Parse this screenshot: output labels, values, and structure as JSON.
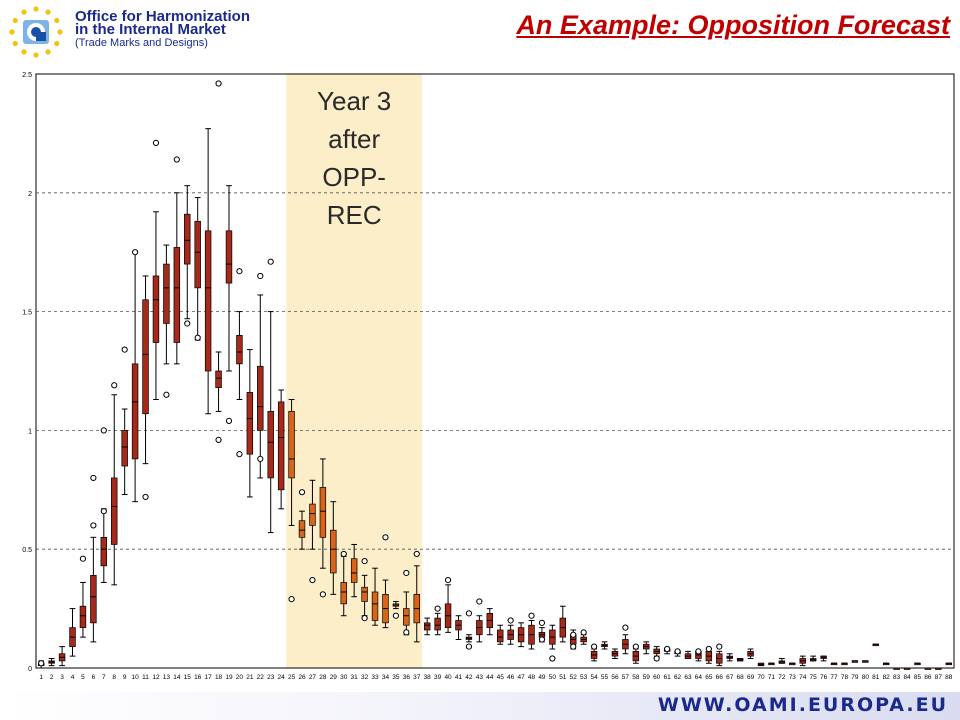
{
  "header": {
    "org_line1": "Office for Harmonization",
    "org_line2": "in the Internal Market",
    "org_line3": "(Trade Marks and Designs)",
    "title": "An Example: Opposition Forecast"
  },
  "highlight": {
    "label_lines": [
      "Year 3",
      "after",
      "OPP-",
      "REC"
    ],
    "from_x": 25,
    "to_x": 37,
    "color": "#fbeec8"
  },
  "footer": {
    "url": "WWW.OAMI.EUROPA.EU"
  },
  "colors": {
    "title": "#c00000",
    "org": "#1a2a8c",
    "box": "#a52a1a",
    "box_highlight": "#d8641a"
  },
  "chart_data": {
    "type": "box",
    "title": "",
    "xlabel": "",
    "ylabel": "",
    "ylim": [
      0,
      2.5
    ],
    "yticks": [
      "0",
      "0.5",
      "1",
      "1.5",
      "2",
      "2.5"
    ],
    "grid": "horizontal dashed",
    "x": [
      1,
      2,
      3,
      4,
      5,
      6,
      7,
      8,
      9,
      10,
      11,
      12,
      13,
      14,
      15,
      16,
      17,
      18,
      19,
      20,
      21,
      22,
      23,
      24,
      25,
      26,
      27,
      28,
      29,
      30,
      31,
      32,
      33,
      34,
      35,
      36,
      37,
      38,
      39,
      40,
      41,
      42,
      43,
      44,
      45,
      46,
      47,
      48,
      49,
      50,
      51,
      52,
      53,
      54,
      55,
      56,
      57,
      58,
      59,
      60,
      61,
      62,
      63,
      64,
      65,
      66,
      67,
      68,
      69,
      70,
      71,
      72,
      73,
      74,
      75,
      76,
      77,
      78,
      79,
      80,
      81,
      82,
      83,
      84,
      85,
      86,
      87,
      88
    ],
    "boxes": [
      {
        "q1": 0.01,
        "q3": 0.02,
        "min": 0.0,
        "max": 0.03,
        "med": 0.015,
        "out": [
          0.02
        ]
      },
      {
        "q1": 0.02,
        "q3": 0.03,
        "min": 0.01,
        "max": 0.04,
        "med": 0.025,
        "out": []
      },
      {
        "q1": 0.03,
        "q3": 0.06,
        "min": 0.01,
        "max": 0.09,
        "med": 0.045,
        "out": []
      },
      {
        "q1": 0.09,
        "q3": 0.17,
        "min": 0.05,
        "max": 0.25,
        "med": 0.13,
        "out": []
      },
      {
        "q1": 0.17,
        "q3": 0.26,
        "min": 0.13,
        "max": 0.36,
        "med": 0.22,
        "out": [
          0.46
        ]
      },
      {
        "q1": 0.19,
        "q3": 0.39,
        "min": 0.11,
        "max": 0.55,
        "med": 0.3,
        "out": [
          0.8,
          0.6
        ]
      },
      {
        "q1": 0.43,
        "q3": 0.55,
        "min": 0.36,
        "max": 0.67,
        "med": 0.5,
        "out": [
          1.0,
          0.66
        ]
      },
      {
        "q1": 0.52,
        "q3": 0.8,
        "min": 0.35,
        "max": 1.15,
        "med": 0.68,
        "out": [
          1.19
        ]
      },
      {
        "q1": 0.85,
        "q3": 1.0,
        "min": 0.73,
        "max": 1.09,
        "med": 0.93,
        "out": [
          1.34
        ]
      },
      {
        "q1": 0.88,
        "q3": 1.28,
        "min": 0.7,
        "max": 1.75,
        "med": 1.12,
        "out": [
          1.75
        ]
      },
      {
        "q1": 1.07,
        "q3": 1.55,
        "min": 0.86,
        "max": 1.65,
        "med": 1.32,
        "out": [
          0.72
        ]
      },
      {
        "q1": 1.37,
        "q3": 1.65,
        "min": 1.13,
        "max": 1.92,
        "med": 1.55,
        "out": [
          2.21
        ]
      },
      {
        "q1": 1.45,
        "q3": 1.7,
        "min": 1.28,
        "max": 1.78,
        "med": 1.6,
        "out": [
          1.15
        ]
      },
      {
        "q1": 1.37,
        "q3": 1.77,
        "min": 1.28,
        "max": 2.0,
        "med": 1.6,
        "out": [
          2.14
        ]
      },
      {
        "q1": 1.7,
        "q3": 1.91,
        "min": 1.47,
        "max": 2.03,
        "med": 1.8,
        "out": [
          1.45
        ]
      },
      {
        "q1": 1.6,
        "q3": 1.88,
        "min": 1.38,
        "max": 1.98,
        "med": 1.75,
        "out": [
          1.39
        ]
      },
      {
        "q1": 1.25,
        "q3": 1.84,
        "min": 1.07,
        "max": 2.27,
        "med": 1.6,
        "out": []
      },
      {
        "q1": 1.18,
        "q3": 1.25,
        "min": 1.08,
        "max": 1.33,
        "med": 1.22,
        "out": [
          2.46,
          0.96
        ]
      },
      {
        "q1": 1.62,
        "q3": 1.84,
        "min": 1.25,
        "max": 2.03,
        "med": 1.7,
        "out": [
          1.04
        ]
      },
      {
        "q1": 1.28,
        "q3": 1.4,
        "min": 1.13,
        "max": 1.5,
        "med": 1.33,
        "out": [
          1.67,
          0.9
        ]
      },
      {
        "q1": 0.9,
        "q3": 1.16,
        "min": 0.72,
        "max": 1.34,
        "med": 1.05,
        "out": []
      },
      {
        "q1": 1.0,
        "q3": 1.27,
        "min": 0.8,
        "max": 1.57,
        "med": 1.1,
        "out": [
          1.65,
          0.88
        ]
      },
      {
        "q1": 0.8,
        "q3": 1.08,
        "min": 0.57,
        "max": 1.5,
        "med": 0.95,
        "out": [
          1.71
        ]
      },
      {
        "q1": 0.75,
        "q3": 1.12,
        "min": 0.67,
        "max": 1.17,
        "med": 0.97,
        "out": []
      },
      {
        "q1": 0.8,
        "q3": 1.08,
        "min": 0.6,
        "max": 1.13,
        "med": 0.88,
        "out": [
          0.29
        ]
      },
      {
        "q1": 0.55,
        "q3": 0.62,
        "min": 0.5,
        "max": 0.66,
        "med": 0.58,
        "out": [
          0.74
        ]
      },
      {
        "q1": 0.6,
        "q3": 0.69,
        "min": 0.5,
        "max": 0.79,
        "med": 0.65,
        "out": [
          0.37
        ]
      },
      {
        "q1": 0.55,
        "q3": 0.76,
        "min": 0.42,
        "max": 0.88,
        "med": 0.66,
        "out": [
          0.31
        ]
      },
      {
        "q1": 0.4,
        "q3": 0.58,
        "min": 0.31,
        "max": 0.7,
        "med": 0.5,
        "out": []
      },
      {
        "q1": 0.27,
        "q3": 0.36,
        "min": 0.22,
        "max": 0.47,
        "med": 0.32,
        "out": [
          0.48
        ]
      },
      {
        "q1": 0.36,
        "q3": 0.46,
        "min": 0.3,
        "max": 0.52,
        "med": 0.4,
        "out": []
      },
      {
        "q1": 0.28,
        "q3": 0.34,
        "min": 0.22,
        "max": 0.39,
        "med": 0.32,
        "out": [
          0.45,
          0.21
        ]
      },
      {
        "q1": 0.2,
        "q3": 0.32,
        "min": 0.18,
        "max": 0.42,
        "med": 0.27,
        "out": []
      },
      {
        "q1": 0.19,
        "q3": 0.31,
        "min": 0.17,
        "max": 0.37,
        "med": 0.25,
        "out": [
          0.55
        ]
      },
      {
        "q1": 0.26,
        "q3": 0.27,
        "min": 0.25,
        "max": 0.28,
        "med": 0.265,
        "out": [
          0.22
        ]
      },
      {
        "q1": 0.18,
        "q3": 0.25,
        "min": 0.14,
        "max": 0.32,
        "med": 0.22,
        "out": [
          0.4,
          0.15
        ]
      },
      {
        "q1": 0.19,
        "q3": 0.31,
        "min": 0.11,
        "max": 0.43,
        "med": 0.25,
        "out": [
          0.48
        ]
      },
      {
        "q1": 0.16,
        "q3": 0.19,
        "min": 0.14,
        "max": 0.21,
        "med": 0.18,
        "out": []
      },
      {
        "q1": 0.16,
        "q3": 0.21,
        "min": 0.14,
        "max": 0.23,
        "med": 0.18,
        "out": [
          0.25
        ]
      },
      {
        "q1": 0.17,
        "q3": 0.27,
        "min": 0.15,
        "max": 0.35,
        "med": 0.22,
        "out": [
          0.37
        ]
      },
      {
        "q1": 0.16,
        "q3": 0.2,
        "min": 0.12,
        "max": 0.22,
        "med": 0.18,
        "out": []
      },
      {
        "q1": 0.12,
        "q3": 0.13,
        "min": 0.11,
        "max": 0.14,
        "med": 0.125,
        "out": [
          0.09,
          0.23
        ]
      },
      {
        "q1": 0.14,
        "q3": 0.2,
        "min": 0.11,
        "max": 0.22,
        "med": 0.17,
        "out": [
          0.28
        ]
      },
      {
        "q1": 0.17,
        "q3": 0.23,
        "min": 0.14,
        "max": 0.25,
        "med": 0.2,
        "out": []
      },
      {
        "q1": 0.11,
        "q3": 0.16,
        "min": 0.1,
        "max": 0.18,
        "med": 0.13,
        "out": []
      },
      {
        "q1": 0.12,
        "q3": 0.16,
        "min": 0.1,
        "max": 0.18,
        "med": 0.14,
        "out": [
          0.2
        ]
      },
      {
        "q1": 0.11,
        "q3": 0.17,
        "min": 0.09,
        "max": 0.19,
        "med": 0.14,
        "out": []
      },
      {
        "q1": 0.1,
        "q3": 0.18,
        "min": 0.08,
        "max": 0.2,
        "med": 0.14,
        "out": [
          0.22
        ]
      },
      {
        "q1": 0.13,
        "q3": 0.15,
        "min": 0.11,
        "max": 0.17,
        "med": 0.14,
        "out": [
          0.19,
          0.12
        ]
      },
      {
        "q1": 0.1,
        "q3": 0.16,
        "min": 0.08,
        "max": 0.18,
        "med": 0.13,
        "out": [
          0.04
        ]
      },
      {
        "q1": 0.13,
        "q3": 0.21,
        "min": 0.11,
        "max": 0.26,
        "med": 0.17,
        "out": []
      },
      {
        "q1": 0.1,
        "q3": 0.14,
        "min": 0.08,
        "max": 0.16,
        "med": 0.12,
        "out": [
          0.09,
          0.14
        ]
      },
      {
        "q1": 0.11,
        "q3": 0.13,
        "min": 0.1,
        "max": 0.14,
        "med": 0.12,
        "out": [
          0.15
        ]
      },
      {
        "q1": 0.04,
        "q3": 0.07,
        "min": 0.03,
        "max": 0.08,
        "med": 0.055,
        "out": [
          0.09
        ]
      },
      {
        "q1": 0.09,
        "q3": 0.1,
        "min": 0.08,
        "max": 0.11,
        "med": 0.095,
        "out": []
      },
      {
        "q1": 0.05,
        "q3": 0.07,
        "min": 0.04,
        "max": 0.08,
        "med": 0.06,
        "out": []
      },
      {
        "q1": 0.08,
        "q3": 0.12,
        "min": 0.06,
        "max": 0.14,
        "med": 0.1,
        "out": [
          0.17
        ]
      },
      {
        "q1": 0.03,
        "q3": 0.07,
        "min": 0.02,
        "max": 0.08,
        "med": 0.05,
        "out": [
          0.09
        ]
      },
      {
        "q1": 0.08,
        "q3": 0.1,
        "min": 0.06,
        "max": 0.11,
        "med": 0.09,
        "out": []
      },
      {
        "q1": 0.06,
        "q3": 0.08,
        "min": 0.05,
        "max": 0.09,
        "med": 0.07,
        "out": [
          0.04
        ]
      },
      {
        "q1": 0.07,
        "q3": 0.08,
        "min": 0.06,
        "max": 0.08,
        "med": 0.075,
        "out": [
          0.08
        ]
      },
      {
        "q1": 0.06,
        "q3": 0.07,
        "min": 0.05,
        "max": 0.07,
        "med": 0.065,
        "out": [
          0.07
        ]
      },
      {
        "q1": 0.04,
        "q3": 0.06,
        "min": 0.04,
        "max": 0.07,
        "med": 0.05,
        "out": []
      },
      {
        "q1": 0.04,
        "q3": 0.07,
        "min": 0.03,
        "max": 0.07,
        "med": 0.055,
        "out": [
          0.07
        ]
      },
      {
        "q1": 0.03,
        "q3": 0.07,
        "min": 0.02,
        "max": 0.08,
        "med": 0.05,
        "out": [
          0.08
        ]
      },
      {
        "q1": 0.02,
        "q3": 0.06,
        "min": 0.01,
        "max": 0.07,
        "med": 0.04,
        "out": [
          0.09
        ]
      },
      {
        "q1": 0.04,
        "q3": 0.05,
        "min": 0.03,
        "max": 0.06,
        "med": 0.045,
        "out": []
      },
      {
        "q1": 0.03,
        "q3": 0.04,
        "min": 0.03,
        "max": 0.04,
        "med": 0.035,
        "out": []
      },
      {
        "q1": 0.05,
        "q3": 0.07,
        "min": 0.04,
        "max": 0.08,
        "med": 0.06,
        "out": []
      },
      {
        "q1": 0.01,
        "q3": 0.02,
        "min": 0.01,
        "max": 0.02,
        "med": 0.015,
        "out": []
      },
      {
        "q1": 0.02,
        "q3": 0.02,
        "min": 0.02,
        "max": 0.02,
        "med": 0.02,
        "out": []
      },
      {
        "q1": 0.02,
        "q3": 0.03,
        "min": 0.02,
        "max": 0.04,
        "med": 0.025,
        "out": []
      },
      {
        "q1": 0.02,
        "q3": 0.02,
        "min": 0.02,
        "max": 0.02,
        "med": 0.02,
        "out": []
      },
      {
        "q1": 0.02,
        "q3": 0.04,
        "min": 0.01,
        "max": 0.05,
        "med": 0.03,
        "out": []
      },
      {
        "q1": 0.03,
        "q3": 0.04,
        "min": 0.03,
        "max": 0.05,
        "med": 0.035,
        "out": []
      },
      {
        "q1": 0.04,
        "q3": 0.05,
        "min": 0.03,
        "max": 0.05,
        "med": 0.045,
        "out": []
      },
      {
        "q1": 0.02,
        "q3": 0.02,
        "min": 0.02,
        "max": 0.02,
        "med": 0.02,
        "out": []
      },
      {
        "q1": 0.02,
        "q3": 0.02,
        "min": 0.02,
        "max": 0.02,
        "med": 0.02,
        "out": []
      },
      {
        "q1": 0.03,
        "q3": 0.03,
        "min": 0.03,
        "max": 0.03,
        "med": 0.03,
        "out": []
      },
      {
        "q1": 0.03,
        "q3": 0.03,
        "min": 0.03,
        "max": 0.03,
        "med": 0.03,
        "out": []
      },
      {
        "q1": 0.1,
        "q3": 0.1,
        "min": 0.1,
        "max": 0.1,
        "med": 0.1,
        "out": []
      },
      {
        "q1": 0.02,
        "q3": 0.02,
        "min": 0.02,
        "max": 0.02,
        "med": 0.02,
        "out": []
      },
      {
        "q1": 0.0,
        "q3": 0.0,
        "min": 0.0,
        "max": 0.0,
        "med": 0.0,
        "out": []
      },
      {
        "q1": 0.0,
        "q3": 0.0,
        "min": 0.0,
        "max": 0.0,
        "med": 0.0,
        "out": []
      },
      {
        "q1": 0.02,
        "q3": 0.02,
        "min": 0.02,
        "max": 0.02,
        "med": 0.02,
        "out": []
      },
      {
        "q1": 0.0,
        "q3": 0.0,
        "min": 0.0,
        "max": 0.0,
        "med": 0.0,
        "out": []
      },
      {
        "q1": 0.0,
        "q3": 0.0,
        "min": 0.0,
        "max": 0.0,
        "med": 0.0,
        "out": []
      },
      {
        "q1": 0.02,
        "q3": 0.02,
        "min": 0.02,
        "max": 0.02,
        "med": 0.02,
        "out": []
      }
    ]
  }
}
